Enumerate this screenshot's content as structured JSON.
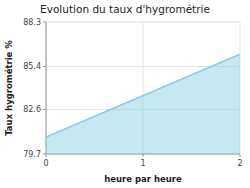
{
  "chart_data": {
    "type": "area",
    "title": "Evolution du taux d'hygrométrie",
    "xlabel": "heure par heure",
    "ylabel": "Taux hygrométrie %",
    "x": [
      0,
      2
    ],
    "values": [
      80.8,
      86.2
    ],
    "color": "#7ecde0",
    "xlim": [
      0,
      2
    ],
    "ylim": [
      79.7,
      88.3
    ],
    "xticks": [
      0,
      1,
      2
    ],
    "yticks": [
      79.7,
      82.6,
      85.4,
      88.3
    ],
    "grid": true
  }
}
